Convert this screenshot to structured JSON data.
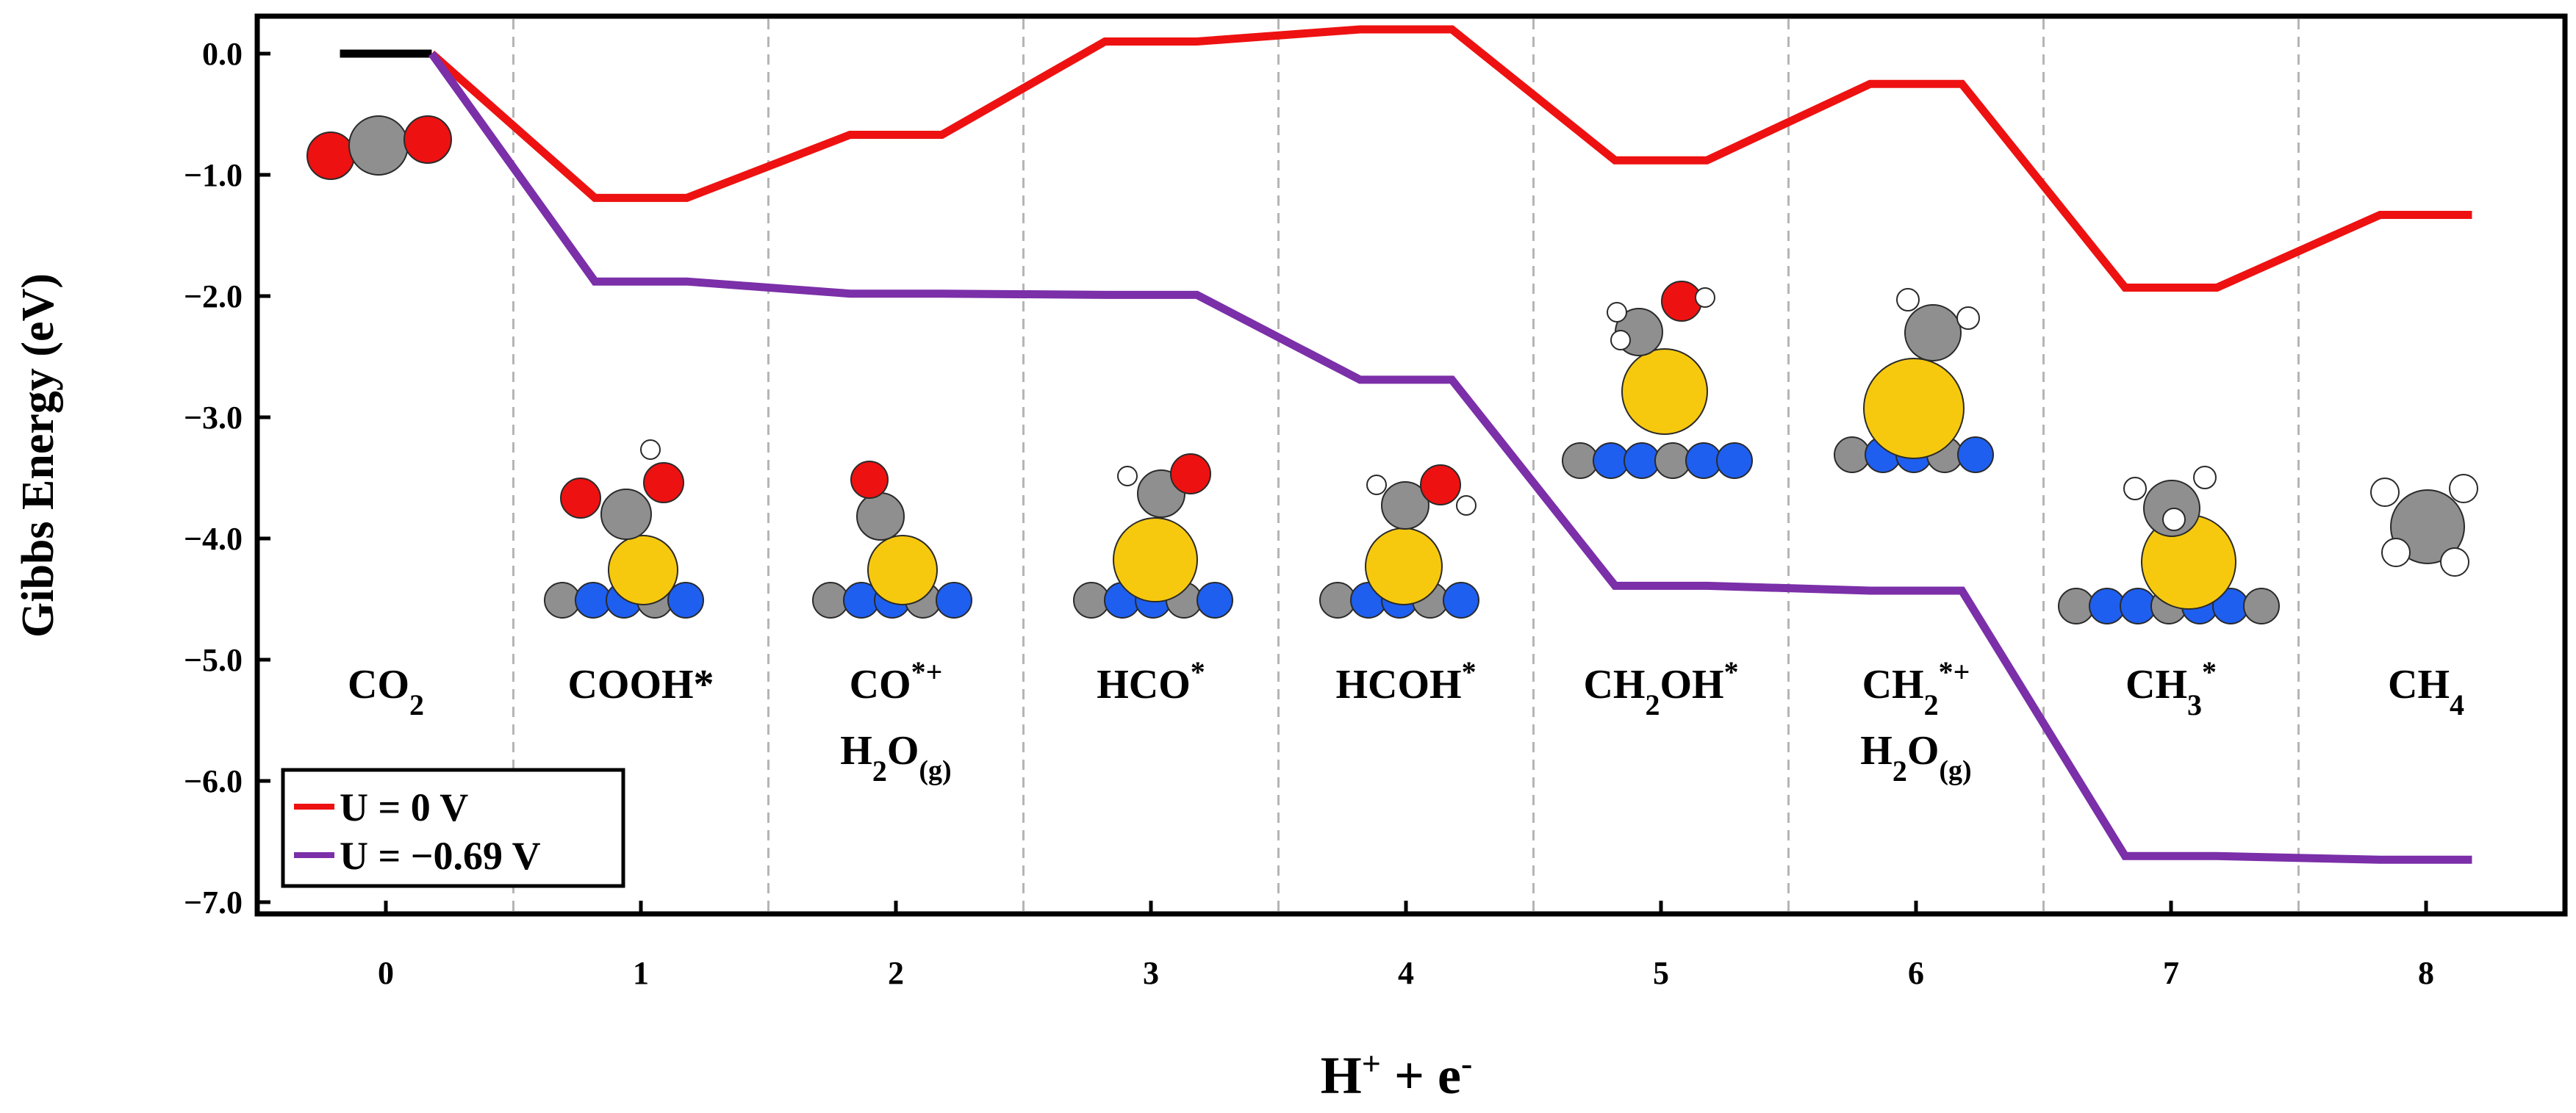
{
  "chart_data": {
    "type": "line",
    "xlabel": "H⁺ + e⁻",
    "ylabel": "Gibbs Energy (eV)",
    "xlim": [
      -0.5,
      8.5
    ],
    "ylim": [
      -7.0,
      0.3
    ],
    "xticks": [
      "0",
      "1",
      "2",
      "3",
      "4",
      "5",
      "6",
      "7",
      "8"
    ],
    "yticks": [
      "0.0",
      "−1.0",
      "−2.0",
      "−3.0",
      "−4.0",
      "−5.0",
      "−6.0",
      "−7.0"
    ],
    "ytick_values": [
      0,
      -1,
      -2,
      -3,
      -4,
      -5,
      -6,
      -7
    ],
    "grid": "vertical dashed separators between steps",
    "separators": [
      0.5,
      1.5,
      2.5,
      3.5,
      4.5,
      5.5,
      6.5,
      7.5
    ],
    "step_half_width": 0.18,
    "steps": [
      {
        "label": "CO",
        "sub": "2",
        "sup": "",
        "line2": "",
        "line2_sub": ""
      },
      {
        "label": "COOH*",
        "sub": "",
        "sup": "",
        "line2": "",
        "line2_sub": ""
      },
      {
        "label": "CO",
        "sub": "",
        "sup": "*+",
        "line2": "H2O",
        "line2_sub": "(g)"
      },
      {
        "label": "HCO",
        "sub": "",
        "sup": "*",
        "line2": "",
        "line2_sub": ""
      },
      {
        "label": "HCOH",
        "sub": "",
        "sup": "*",
        "line2": "",
        "line2_sub": ""
      },
      {
        "label": "CH2OH",
        "sub": "",
        "sup": "*",
        "line2": "",
        "line2_sub": ""
      },
      {
        "label": "CH2",
        "sub": "",
        "sup": "*+",
        "line2": "H2O",
        "line2_sub": "(g)"
      },
      {
        "label": "CH3",
        "sub": "",
        "sup": "*",
        "line2": "",
        "line2_sub": ""
      },
      {
        "label": "CH",
        "sub": "4",
        "sup": "",
        "line2": "",
        "line2_sub": ""
      }
    ],
    "reference": {
      "name": "CO2 reference level",
      "value": 0.0,
      "color": "#000000"
    },
    "series": [
      {
        "name": "U = 0 V",
        "color": "#ee1111",
        "values": [
          0.0,
          -1.19,
          -0.67,
          0.1,
          0.2,
          -0.88,
          -0.25,
          -1.93,
          -1.33
        ]
      },
      {
        "name": "U = −0.69 V",
        "color": "#7b2fa8",
        "values": [
          0.0,
          -1.88,
          -1.98,
          -1.99,
          -2.69,
          -4.39,
          -4.43,
          -6.62,
          -6.65
        ]
      }
    ],
    "legend": {
      "position": "bottom-left"
    }
  }
}
